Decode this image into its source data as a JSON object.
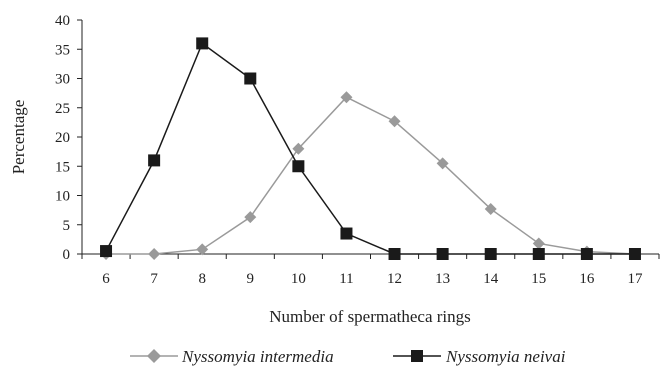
{
  "chart_data": {
    "type": "line",
    "x": [
      6,
      7,
      8,
      9,
      10,
      11,
      12,
      13,
      14,
      15,
      16,
      17
    ],
    "xlabel": "Number of spermatheca rings",
    "ylabel": "Percentage",
    "ylim": [
      0,
      40
    ],
    "yticks": [
      0,
      5,
      10,
      15,
      20,
      25,
      30,
      35,
      40
    ],
    "grid": false,
    "legend_position": "bottom",
    "series": [
      {
        "name": "Nyssomyia intermedia",
        "marker": "diamond",
        "color": "#9a9a9a",
        "values": [
          0,
          0,
          0.8,
          6.3,
          18,
          26.8,
          22.7,
          15.5,
          7.7,
          1.8,
          0.4,
          0
        ]
      },
      {
        "name": "Nyssomyia neivai",
        "marker": "square",
        "color": "#1a1a1a",
        "values": [
          0.5,
          16,
          36,
          30,
          15,
          3.5,
          0,
          0,
          0,
          0,
          0,
          0
        ]
      }
    ]
  }
}
